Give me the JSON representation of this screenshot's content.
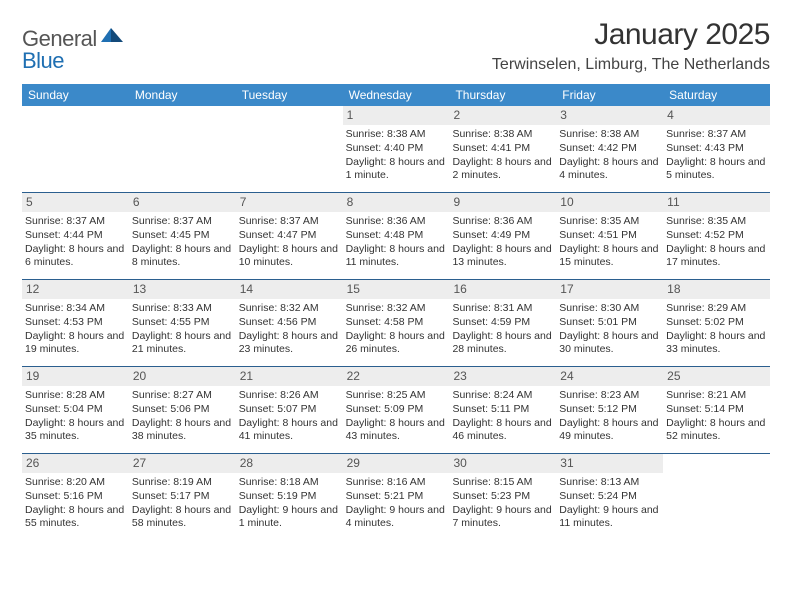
{
  "brand": {
    "text1": "General",
    "text2": "Blue",
    "accent_color": "#1f6fb2"
  },
  "title": "January 2025",
  "location": "Terwinselen, Limburg, The Netherlands",
  "header_bg": "#3b89c9",
  "daynum_bg": "#ededed",
  "rule_color": "#2b5f8f",
  "days_of_week": [
    "Sunday",
    "Monday",
    "Tuesday",
    "Wednesday",
    "Thursday",
    "Friday",
    "Saturday"
  ],
  "weeks": [
    [
      {
        "n": "",
        "sunrise": "",
        "sunset": "",
        "daylight": ""
      },
      {
        "n": "",
        "sunrise": "",
        "sunset": "",
        "daylight": ""
      },
      {
        "n": "",
        "sunrise": "",
        "sunset": "",
        "daylight": ""
      },
      {
        "n": "1",
        "sunrise": "Sunrise: 8:38 AM",
        "sunset": "Sunset: 4:40 PM",
        "daylight": "Daylight: 8 hours and 1 minute."
      },
      {
        "n": "2",
        "sunrise": "Sunrise: 8:38 AM",
        "sunset": "Sunset: 4:41 PM",
        "daylight": "Daylight: 8 hours and 2 minutes."
      },
      {
        "n": "3",
        "sunrise": "Sunrise: 8:38 AM",
        "sunset": "Sunset: 4:42 PM",
        "daylight": "Daylight: 8 hours and 4 minutes."
      },
      {
        "n": "4",
        "sunrise": "Sunrise: 8:37 AM",
        "sunset": "Sunset: 4:43 PM",
        "daylight": "Daylight: 8 hours and 5 minutes."
      }
    ],
    [
      {
        "n": "5",
        "sunrise": "Sunrise: 8:37 AM",
        "sunset": "Sunset: 4:44 PM",
        "daylight": "Daylight: 8 hours and 6 minutes."
      },
      {
        "n": "6",
        "sunrise": "Sunrise: 8:37 AM",
        "sunset": "Sunset: 4:45 PM",
        "daylight": "Daylight: 8 hours and 8 minutes."
      },
      {
        "n": "7",
        "sunrise": "Sunrise: 8:37 AM",
        "sunset": "Sunset: 4:47 PM",
        "daylight": "Daylight: 8 hours and 10 minutes."
      },
      {
        "n": "8",
        "sunrise": "Sunrise: 8:36 AM",
        "sunset": "Sunset: 4:48 PM",
        "daylight": "Daylight: 8 hours and 11 minutes."
      },
      {
        "n": "9",
        "sunrise": "Sunrise: 8:36 AM",
        "sunset": "Sunset: 4:49 PM",
        "daylight": "Daylight: 8 hours and 13 minutes."
      },
      {
        "n": "10",
        "sunrise": "Sunrise: 8:35 AM",
        "sunset": "Sunset: 4:51 PM",
        "daylight": "Daylight: 8 hours and 15 minutes."
      },
      {
        "n": "11",
        "sunrise": "Sunrise: 8:35 AM",
        "sunset": "Sunset: 4:52 PM",
        "daylight": "Daylight: 8 hours and 17 minutes."
      }
    ],
    [
      {
        "n": "12",
        "sunrise": "Sunrise: 8:34 AM",
        "sunset": "Sunset: 4:53 PM",
        "daylight": "Daylight: 8 hours and 19 minutes."
      },
      {
        "n": "13",
        "sunrise": "Sunrise: 8:33 AM",
        "sunset": "Sunset: 4:55 PM",
        "daylight": "Daylight: 8 hours and 21 minutes."
      },
      {
        "n": "14",
        "sunrise": "Sunrise: 8:32 AM",
        "sunset": "Sunset: 4:56 PM",
        "daylight": "Daylight: 8 hours and 23 minutes."
      },
      {
        "n": "15",
        "sunrise": "Sunrise: 8:32 AM",
        "sunset": "Sunset: 4:58 PM",
        "daylight": "Daylight: 8 hours and 26 minutes."
      },
      {
        "n": "16",
        "sunrise": "Sunrise: 8:31 AM",
        "sunset": "Sunset: 4:59 PM",
        "daylight": "Daylight: 8 hours and 28 minutes."
      },
      {
        "n": "17",
        "sunrise": "Sunrise: 8:30 AM",
        "sunset": "Sunset: 5:01 PM",
        "daylight": "Daylight: 8 hours and 30 minutes."
      },
      {
        "n": "18",
        "sunrise": "Sunrise: 8:29 AM",
        "sunset": "Sunset: 5:02 PM",
        "daylight": "Daylight: 8 hours and 33 minutes."
      }
    ],
    [
      {
        "n": "19",
        "sunrise": "Sunrise: 8:28 AM",
        "sunset": "Sunset: 5:04 PM",
        "daylight": "Daylight: 8 hours and 35 minutes."
      },
      {
        "n": "20",
        "sunrise": "Sunrise: 8:27 AM",
        "sunset": "Sunset: 5:06 PM",
        "daylight": "Daylight: 8 hours and 38 minutes."
      },
      {
        "n": "21",
        "sunrise": "Sunrise: 8:26 AM",
        "sunset": "Sunset: 5:07 PM",
        "daylight": "Daylight: 8 hours and 41 minutes."
      },
      {
        "n": "22",
        "sunrise": "Sunrise: 8:25 AM",
        "sunset": "Sunset: 5:09 PM",
        "daylight": "Daylight: 8 hours and 43 minutes."
      },
      {
        "n": "23",
        "sunrise": "Sunrise: 8:24 AM",
        "sunset": "Sunset: 5:11 PM",
        "daylight": "Daylight: 8 hours and 46 minutes."
      },
      {
        "n": "24",
        "sunrise": "Sunrise: 8:23 AM",
        "sunset": "Sunset: 5:12 PM",
        "daylight": "Daylight: 8 hours and 49 minutes."
      },
      {
        "n": "25",
        "sunrise": "Sunrise: 8:21 AM",
        "sunset": "Sunset: 5:14 PM",
        "daylight": "Daylight: 8 hours and 52 minutes."
      }
    ],
    [
      {
        "n": "26",
        "sunrise": "Sunrise: 8:20 AM",
        "sunset": "Sunset: 5:16 PM",
        "daylight": "Daylight: 8 hours and 55 minutes."
      },
      {
        "n": "27",
        "sunrise": "Sunrise: 8:19 AM",
        "sunset": "Sunset: 5:17 PM",
        "daylight": "Daylight: 8 hours and 58 minutes."
      },
      {
        "n": "28",
        "sunrise": "Sunrise: 8:18 AM",
        "sunset": "Sunset: 5:19 PM",
        "daylight": "Daylight: 9 hours and 1 minute."
      },
      {
        "n": "29",
        "sunrise": "Sunrise: 8:16 AM",
        "sunset": "Sunset: 5:21 PM",
        "daylight": "Daylight: 9 hours and 4 minutes."
      },
      {
        "n": "30",
        "sunrise": "Sunrise: 8:15 AM",
        "sunset": "Sunset: 5:23 PM",
        "daylight": "Daylight: 9 hours and 7 minutes."
      },
      {
        "n": "31",
        "sunrise": "Sunrise: 8:13 AM",
        "sunset": "Sunset: 5:24 PM",
        "daylight": "Daylight: 9 hours and 11 minutes."
      },
      {
        "n": "",
        "sunrise": "",
        "sunset": "",
        "daylight": ""
      }
    ]
  ]
}
